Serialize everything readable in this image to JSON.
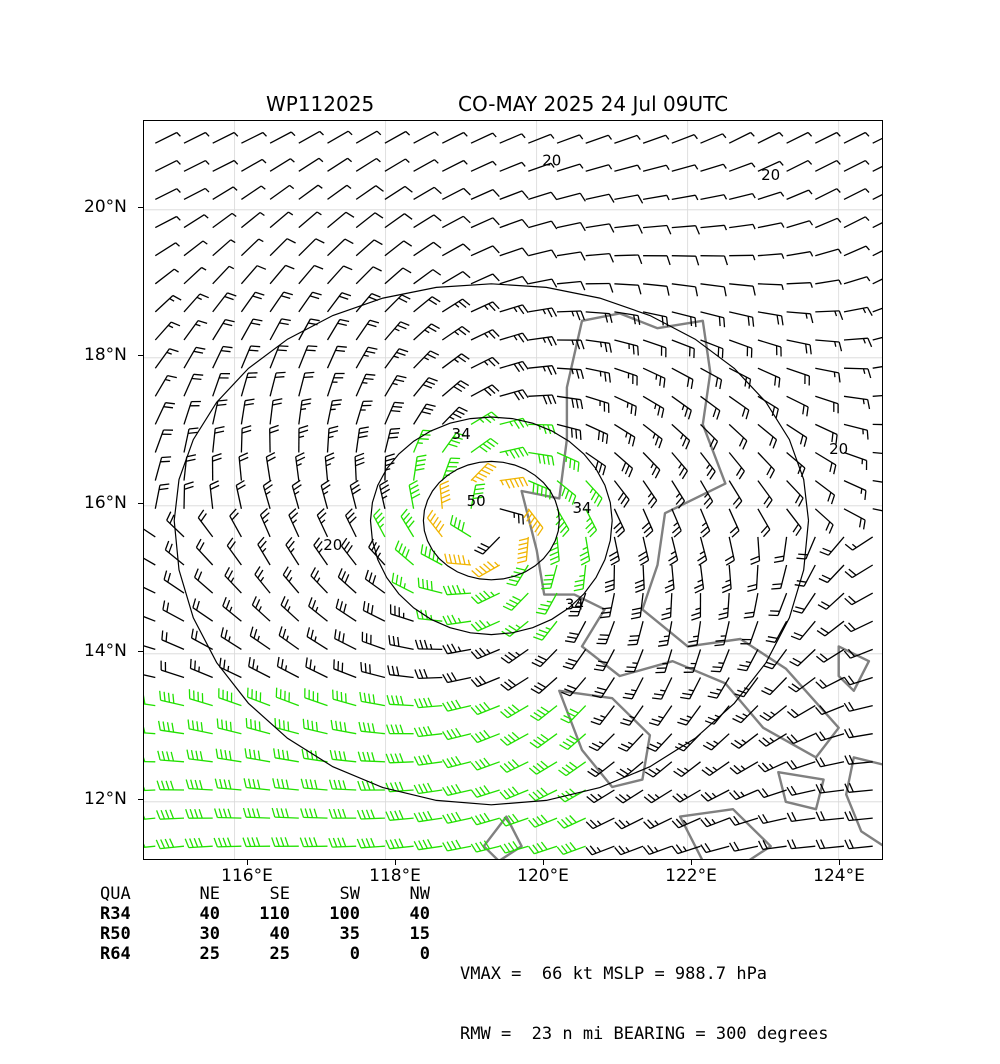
{
  "title": {
    "storm_id": "WP112025",
    "storm_info": "CO-MAY 2025 24 Jul 09UTC"
  },
  "map": {
    "lat_labels": [
      "20°N",
      "18°N",
      "16°N",
      "14°N",
      "12°N"
    ],
    "lon_labels": [
      "116°E",
      "118°E",
      "120°E",
      "122°E",
      "124°E"
    ],
    "lat_values": [
      20,
      18,
      16,
      14,
      12
    ],
    "lon_values": [
      116,
      118,
      120,
      122,
      124
    ],
    "extent": {
      "lon_min": 114.8,
      "lon_max": 124.6,
      "lat_min": 11.2,
      "lat_max": 21.2
    },
    "storm_center": {
      "lon": 119.4,
      "lat": 15.8
    },
    "contour_labels": [
      "20",
      "20",
      "20",
      "20",
      "34",
      "34",
      "34",
      "50"
    ],
    "colors": {
      "barb_below_34": "#000000",
      "barb_34_50": "#22e000",
      "barb_50_64": "#f0b400",
      "barb_64_plus": "#ff6000",
      "coastline": "#808080",
      "contour": "#000000",
      "grid": "#d8d8d8"
    }
  },
  "wind_radii": {
    "header": [
      "QUA",
      "NE",
      "SE",
      "SW",
      "NW"
    ],
    "rows": [
      {
        "label": "R34",
        "values": [
          "40",
          "110",
          "100",
          "40"
        ]
      },
      {
        "label": "R50",
        "values": [
          "30",
          "40",
          "35",
          "15"
        ]
      },
      {
        "label": "R64",
        "values": [
          "25",
          "25",
          "0",
          "0"
        ]
      }
    ]
  },
  "stats": {
    "line1": "VMAX =  66 kt MSLP = 988.7 hPa",
    "line2": "RMW =  23 n mi BEARING = 300 degrees"
  }
}
